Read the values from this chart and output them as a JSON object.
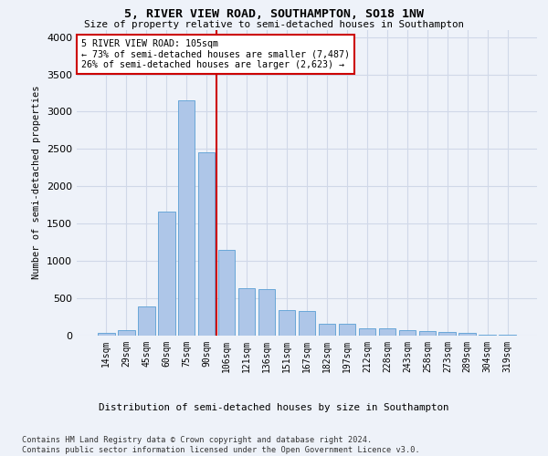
{
  "title": "5, RIVER VIEW ROAD, SOUTHAMPTON, SO18 1NW",
  "subtitle": "Size of property relative to semi-detached houses in Southampton",
  "xlabel": "Distribution of semi-detached houses by size in Southampton",
  "ylabel": "Number of semi-detached properties",
  "categories": [
    "14sqm",
    "29sqm",
    "45sqm",
    "60sqm",
    "75sqm",
    "90sqm",
    "106sqm",
    "121sqm",
    "136sqm",
    "151sqm",
    "167sqm",
    "182sqm",
    "197sqm",
    "212sqm",
    "228sqm",
    "243sqm",
    "258sqm",
    "273sqm",
    "289sqm",
    "304sqm",
    "319sqm"
  ],
  "bar_heights": [
    30,
    70,
    380,
    1660,
    3150,
    2450,
    1150,
    630,
    620,
    340,
    330,
    155,
    150,
    95,
    90,
    65,
    60,
    38,
    35,
    5,
    5
  ],
  "bar_color": "#aec6e8",
  "bar_edge_color": "#5a9fd4",
  "grid_color": "#d0d8e8",
  "property_line_color": "#cc0000",
  "annotation_text": "5 RIVER VIEW ROAD: 105sqm\n← 73% of semi-detached houses are smaller (7,487)\n26% of semi-detached houses are larger (2,623) →",
  "annotation_box_color": "#ffffff",
  "annotation_box_edge": "#cc0000",
  "footer": "Contains HM Land Registry data © Crown copyright and database right 2024.\nContains public sector information licensed under the Open Government Licence v3.0.",
  "ylim": [
    0,
    4100
  ],
  "background_color": "#eef2f9"
}
